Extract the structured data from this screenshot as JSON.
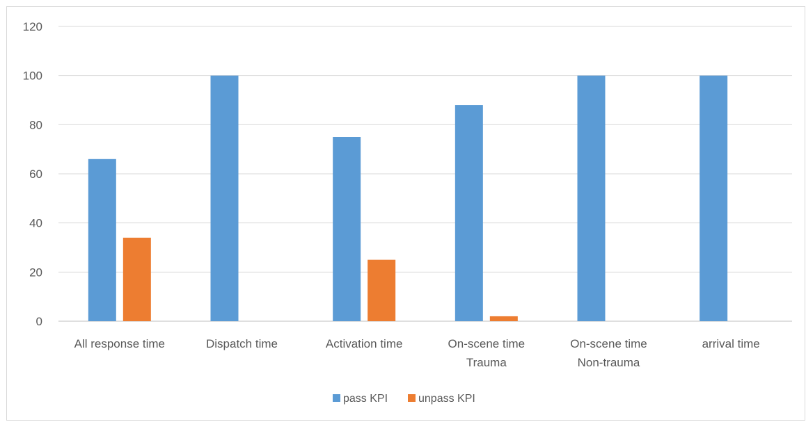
{
  "chart_data": {
    "type": "bar",
    "categories": [
      [
        "All response time"
      ],
      [
        "Dispatch time"
      ],
      [
        "Activation time"
      ],
      [
        "On-scene time",
        "Trauma"
      ],
      [
        "On-scene time",
        "Non-trauma"
      ],
      [
        "arrival time"
      ]
    ],
    "series": [
      {
        "name": "pass KPI",
        "color": "#5b9bd5",
        "values": [
          66,
          100,
          75,
          88,
          100,
          100
        ]
      },
      {
        "name": "unpass KPI",
        "color": "#ed7d31",
        "values": [
          34,
          0,
          25,
          2,
          0,
          0
        ]
      }
    ],
    "ylim": [
      0,
      120
    ],
    "yticks": [
      0,
      20,
      40,
      60,
      80,
      100,
      120
    ],
    "grid": true,
    "legend_position": "bottom"
  }
}
